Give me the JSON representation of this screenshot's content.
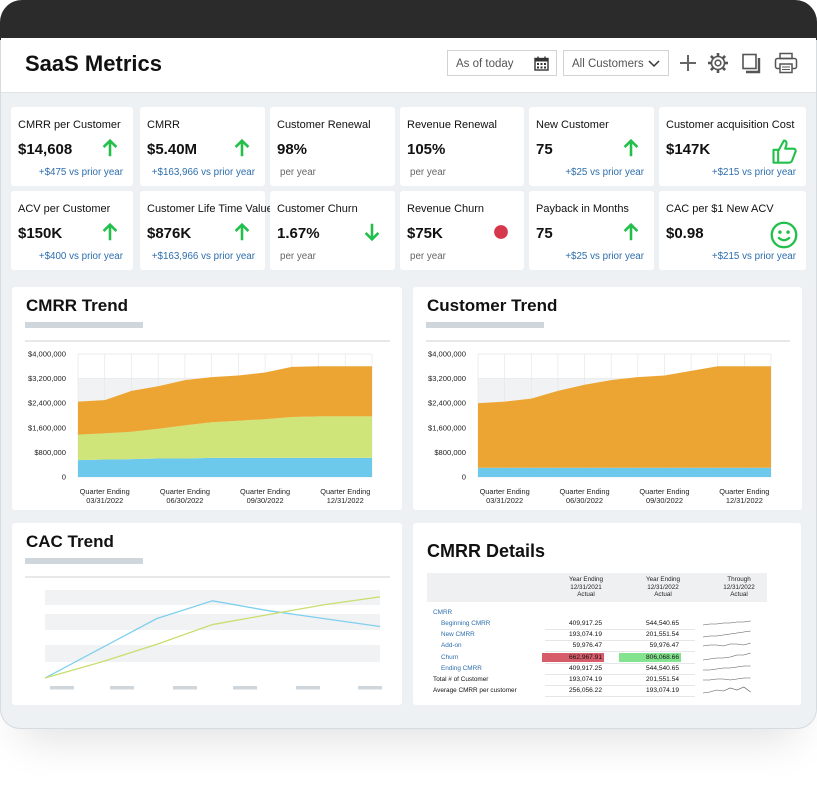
{
  "header": {
    "title": "SaaS Metrics",
    "date_filter": "As of today",
    "customer_filter": "All Customers"
  },
  "kpis": [
    {
      "label": "CMRR per Customer",
      "value": "$14,608",
      "icon": "up",
      "delta": "+$475 vs prior year"
    },
    {
      "label": "CMRR",
      "value": "$5.40M",
      "icon": "up",
      "delta": "+$163,966 vs prior year"
    },
    {
      "label": "Customer Renewal",
      "value": "98%",
      "note": "per year"
    },
    {
      "label": "Revenue Renewal",
      "value": "105%",
      "note": "per year"
    },
    {
      "label": "New Customer",
      "value": "75",
      "icon": "up",
      "delta": "+$25 vs prior year"
    },
    {
      "label": "Customer acquisition Cost",
      "value": "$147K",
      "icon": "thumb",
      "delta": "+$215 vs prior year"
    },
    {
      "label": "ACV per Customer",
      "value": "$150K",
      "icon": "up",
      "delta": "+$400 vs prior year"
    },
    {
      "label": "Customer Life Time Value",
      "value": "$876K",
      "icon": "up",
      "delta": "+$163,966 vs prior year"
    },
    {
      "label": "Customer Churn",
      "value": "1.67%",
      "icon": "down",
      "note": "per year"
    },
    {
      "label": "Revenue Churn",
      "value": "$75K",
      "icon": "dot",
      "note": "per year"
    },
    {
      "label": "Payback in Months",
      "value": "75",
      "icon": "up",
      "delta": "+$25 vs prior year"
    },
    {
      "label": "CAC per $1 New ACV",
      "value": "$0.98",
      "icon": "smile",
      "delta": "+$215 vs prior year"
    }
  ],
  "chart_data": [
    {
      "type": "area",
      "stacked": true,
      "title": "CMRR Trend",
      "categories": [
        null,
        "Quarter Ending\n03/31/2022",
        null,
        null,
        "Quarter Ending\n06/30/2022",
        null,
        null,
        "Quarter Ending\n09/30/2022",
        null,
        null,
        "Quarter Ending\n12/31/2022",
        null
      ],
      "series": [
        {
          "color": "#6cc9ec",
          "values": [
            550000,
            570000,
            580000,
            600000,
            600000,
            620000,
            620000,
            620000,
            620000,
            620000,
            620000,
            620000
          ]
        },
        {
          "color": "#cfe57a",
          "values": [
            830000,
            850000,
            890000,
            970000,
            1080000,
            1160000,
            1210000,
            1260000,
            1330000,
            1350000,
            1350000,
            1350000
          ]
        },
        {
          "color": "#eca532",
          "values": [
            1070000,
            1080000,
            1330000,
            1380000,
            1470000,
            1470000,
            1470000,
            1520000,
            1630000,
            1630000,
            1630000,
            1630000
          ]
        }
      ],
      "ylim": [
        0,
        4000000
      ],
      "yticks": [
        0,
        {
          "value": 800000,
          "label": "$800,000"
        },
        {
          "value": 1600000,
          "label": "$1,600,000"
        },
        {
          "value": 2400000,
          "label": "$2,400,000"
        },
        {
          "value": 3200000,
          "label": "$3,200,000"
        },
        {
          "value": 4000000,
          "label": "$4,000,000"
        }
      ],
      "grid": true
    },
    {
      "type": "area",
      "stacked": true,
      "title": "Customer Trend",
      "categories": [
        null,
        "Quarter Ending\n03/31/2022",
        null,
        null,
        "Quarter Ending\n06/30/2022",
        null,
        null,
        "Quarter Ending\n09/30/2022",
        null,
        null,
        "Quarter Ending\n12/31/2022",
        null
      ],
      "series": [
        {
          "color": "#6cc9ec",
          "values": [
            300000,
            300000,
            300000,
            300000,
            300000,
            300000,
            300000,
            300000,
            300000,
            300000,
            300000,
            300000
          ]
        },
        {
          "color": "#eca532",
          "values": [
            2100000,
            2150000,
            2250000,
            2500000,
            2700000,
            2850000,
            2950000,
            3000000,
            3150000,
            3300000,
            3300000,
            3300000
          ]
        }
      ],
      "ylim": [
        0,
        4000000
      ],
      "yticks": [
        0,
        {
          "value": 800000,
          "label": "$800,000"
        },
        {
          "value": 1600000,
          "label": "$1,600,000"
        },
        {
          "value": 2400000,
          "label": "$2,400,000"
        },
        {
          "value": 3200000,
          "label": "$3,200,000"
        },
        {
          "value": 4000000,
          "label": "$4,000,000"
        }
      ],
      "grid": true
    },
    {
      "type": "line",
      "title": "CAC Trend",
      "categories": [
        null,
        null,
        null,
        null,
        null,
        null,
        null
      ],
      "series": [
        {
          "color": "#7fd0ee",
          "values": [
            0.1,
            1.6,
            3.1,
            4.0,
            3.5,
            3.1,
            2.7
          ]
        },
        {
          "color": "#c8de6e",
          "values": [
            0.1,
            0.9,
            1.8,
            2.8,
            3.3,
            3.8,
            4.2
          ]
        }
      ],
      "ylim": [
        0,
        5
      ]
    }
  ],
  "table": {
    "title": "CMRR Details",
    "columns": [
      "Year Ending\n12/31/2021\nActual",
      "Year Ending\n12/31/2022\nActual",
      "Through\n12/31/2022\nActual"
    ],
    "sections": [
      {
        "title": "CMRR",
        "rows": [
          {
            "label": "Beginning CMRR",
            "cells": [
              "409,917.25",
              "544,540.65"
            ]
          },
          {
            "label": "New CMRR",
            "cells": [
              "193,074.19",
              "201,551.54"
            ]
          },
          {
            "label": "Add-on",
            "cells": [
              "59,976.47",
              "59,976.47"
            ]
          },
          {
            "label": "Churn",
            "cells": [
              "662,967.91",
              "806,068.66"
            ],
            "colors": [
              "#d65c6a",
              "#84e38f"
            ]
          },
          {
            "label": "Ending CMRR",
            "cells": [
              "409,917.25",
              "544,540.65"
            ]
          }
        ]
      }
    ],
    "rows": [
      {
        "label": "Total # of Customer",
        "cells": [
          "193,074.19",
          "201,551.54"
        ]
      },
      {
        "label": "Average CMRR per customer",
        "cells": [
          "256,056.22",
          "193,074.19"
        ]
      }
    ]
  }
}
